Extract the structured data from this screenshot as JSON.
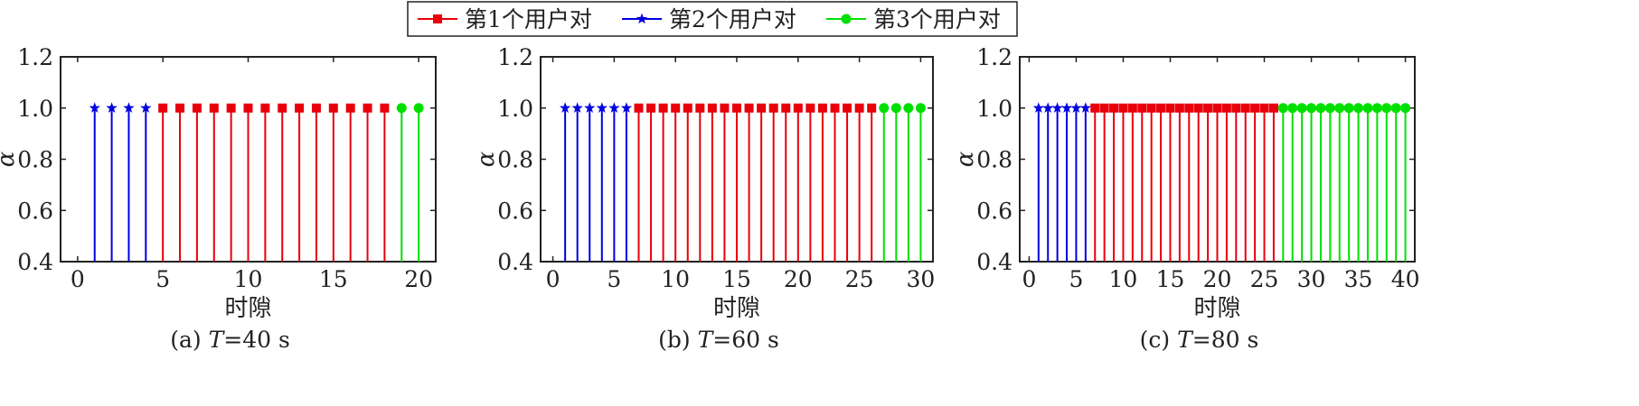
{
  "chart_data": {
    "type": "stem",
    "legend": {
      "placement": "top-center",
      "entries": [
        {
          "name": "第1个用户对",
          "color": "#e8000b",
          "marker": "square"
        },
        {
          "name": "第2个用户对",
          "color": "#0000e0",
          "marker": "star"
        },
        {
          "name": "第3个用户对",
          "color": "#00e000",
          "marker": "circle"
        }
      ]
    },
    "charts": [
      {
        "caption_prefix": "(a) ",
        "caption_var": "T",
        "caption_value": "=40 s",
        "xlabel": "时隙",
        "ylabel": "α",
        "xlim": [
          -1,
          21
        ],
        "ylim": [
          0.4,
          1.2
        ],
        "xticks": [
          0,
          5,
          10,
          15,
          20
        ],
        "yticks": [
          0.4,
          0.6,
          0.8,
          1.0,
          1.2
        ],
        "series": [
          {
            "name": "第2个用户对",
            "x": [
              1,
              4
            ],
            "y": 1.0
          },
          {
            "name": "第1个用户对",
            "x": [
              5,
              18
            ],
            "y": 1.0
          },
          {
            "name": "第3个用户对",
            "x": [
              19,
              20
            ],
            "y": 1.0
          }
        ]
      },
      {
        "caption_prefix": "(b) ",
        "caption_var": "T",
        "caption_value": "=60 s",
        "xlabel": "时隙",
        "ylabel": "α",
        "xlim": [
          -1,
          31
        ],
        "ylim": [
          0.4,
          1.2
        ],
        "xticks": [
          0,
          5,
          10,
          15,
          20,
          25,
          30
        ],
        "yticks": [
          0.4,
          0.6,
          0.8,
          1.0,
          1.2
        ],
        "series": [
          {
            "name": "第2个用户对",
            "x": [
              1,
              6
            ],
            "y": 1.0
          },
          {
            "name": "第1个用户对",
            "x": [
              7,
              26
            ],
            "y": 1.0
          },
          {
            "name": "第3个用户对",
            "x": [
              27,
              30
            ],
            "y": 1.0
          }
        ]
      },
      {
        "caption_prefix": "(c) ",
        "caption_var": "T",
        "caption_value": "=80 s",
        "xlabel": "时隙",
        "ylabel": "α",
        "xlim": [
          -1,
          41
        ],
        "ylim": [
          0.4,
          1.2
        ],
        "xticks": [
          0,
          5,
          10,
          15,
          20,
          25,
          30,
          35,
          40
        ],
        "yticks": [
          0.4,
          0.6,
          0.8,
          1.0,
          1.2
        ],
        "series": [
          {
            "name": "第2个用户对",
            "x": [
              1,
              6
            ],
            "y": 1.0
          },
          {
            "name": "第1个用户对",
            "x": [
              7,
              26
            ],
            "y": 1.0
          },
          {
            "name": "第3个用户对",
            "x": [
              27,
              40
            ],
            "y": 1.0
          }
        ]
      }
    ]
  }
}
